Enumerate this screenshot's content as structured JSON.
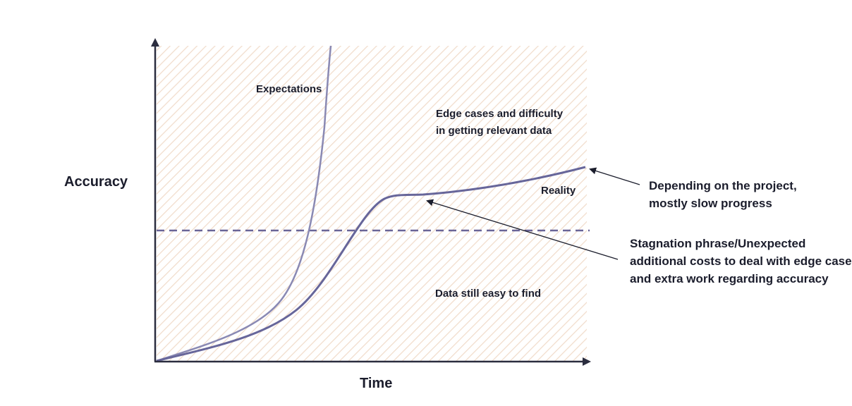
{
  "chart": {
    "y_axis_label": "Accuracy",
    "x_axis_label": "Time",
    "series_labels": {
      "expectations": "Expectations",
      "reality": "Reality"
    },
    "regions": {
      "upper_lines": [
        "Edge cases and difficulty",
        "in getting relevant data"
      ],
      "lower": "Data still easy to find"
    },
    "annotations": {
      "slow_progress": [
        "Depending on the project,",
        "mostly slow progress"
      ],
      "stagnation": [
        "Stagnation phrase/Unexpected",
        "additional costs to deal with edge cases",
        "and extra work regarding accuracy"
      ]
    },
    "colors": {
      "curve": "#67669a",
      "curve_light": "#8a89b3",
      "axis": "#2b2d3f",
      "hatch": "#f1dccb",
      "dashed_line": "#6a6597",
      "text": "#1b1d2c"
    }
  }
}
